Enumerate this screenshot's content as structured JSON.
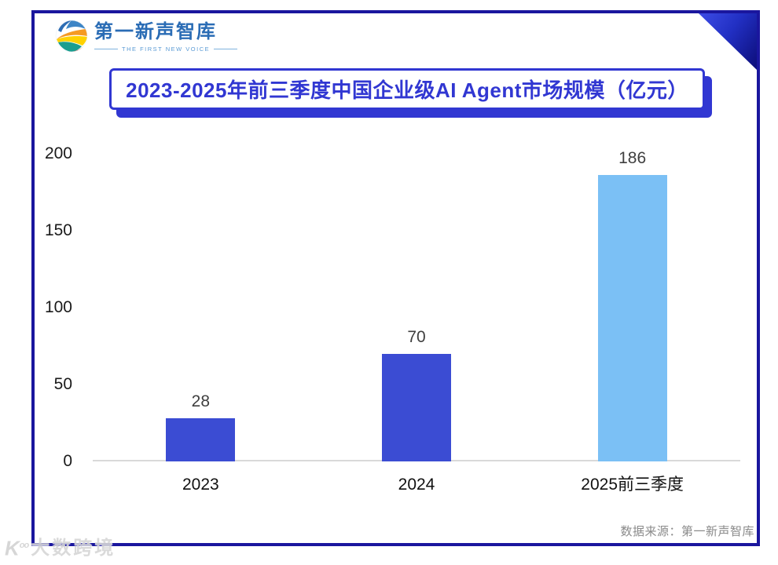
{
  "logo": {
    "name": "第一新声智库",
    "tagline": "THE FIRST NEW VOICE"
  },
  "title": "2023-2025年前三季度中国企业级AI Agent市场规模（亿元）",
  "chart_data": {
    "type": "bar",
    "title": "2023-2025年前三季度中国企业级AI Agent市场规模（亿元）",
    "categories": [
      "2023",
      "2024",
      "2025前三季度"
    ],
    "values": [
      28,
      70,
      186
    ],
    "bar_colors": [
      "#3B4CD3",
      "#3B4CD3",
      "#7BC0F5"
    ],
    "value_labels": [
      "28",
      "70",
      "186"
    ],
    "yticks": [
      0,
      50,
      100,
      150,
      200
    ],
    "ylim": [
      0,
      200
    ],
    "xlabel": "",
    "ylabel": "",
    "unit": "亿元",
    "grid": false,
    "legend_position": "none"
  },
  "source": "数据来源：第一新声智库",
  "watermark": "大数跨境",
  "colors": {
    "frame_navy": "#1A169E",
    "title_blue": "#3137D2",
    "bar_blue": "#3B4CD3",
    "bar_light_blue": "#7BC0F5",
    "logo_blue": "#2A6CB5",
    "axis_gray": "#D9D9D9",
    "source_gray": "#8A8A8A"
  }
}
